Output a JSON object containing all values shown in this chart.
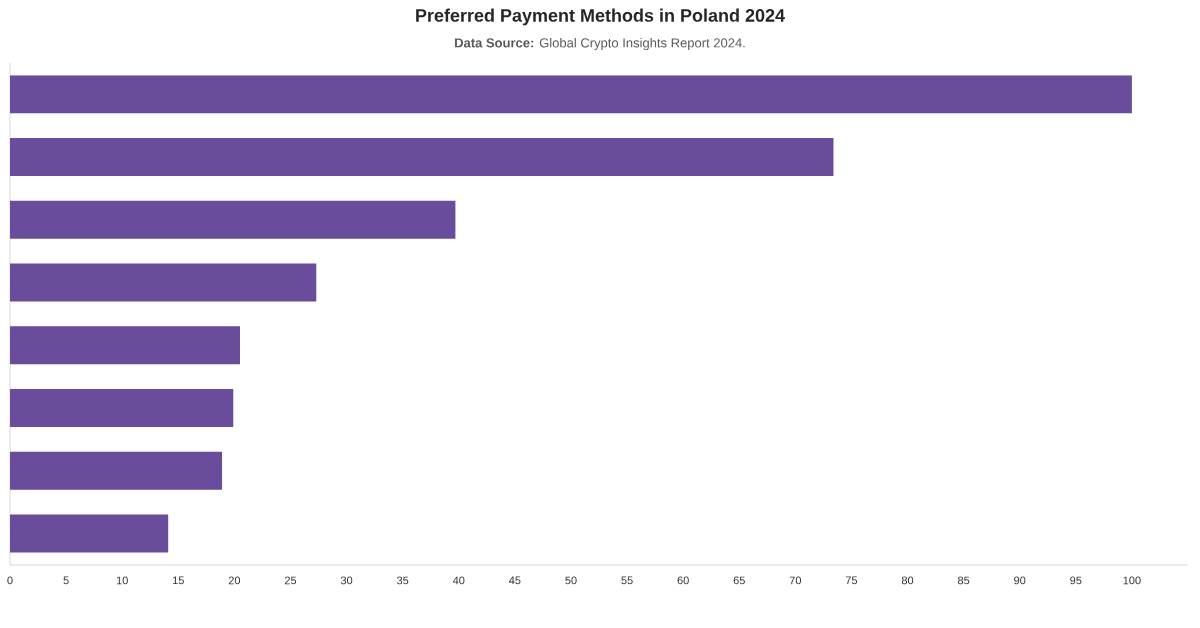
{
  "chart_data": {
    "type": "bar",
    "orientation": "horizontal",
    "title": "Preferred Payment Methods in Poland 2024",
    "subtitle": "**Data Source:** Global Crypto Insights Report 2024.",
    "categories": [
      null,
      null,
      null,
      null,
      null,
      null,
      null,
      null
    ],
    "values": [
      100,
      73.4,
      39.7,
      27.3,
      20.5,
      19.9,
      18.9,
      14.1
    ],
    "color": "#6a4c9c",
    "xlim": [
      0,
      105
    ],
    "xticks": [
      0,
      5,
      10,
      15,
      20,
      25,
      30,
      35,
      40,
      45,
      50,
      55,
      60,
      65,
      70,
      75,
      80,
      85,
      90,
      95,
      100
    ]
  }
}
